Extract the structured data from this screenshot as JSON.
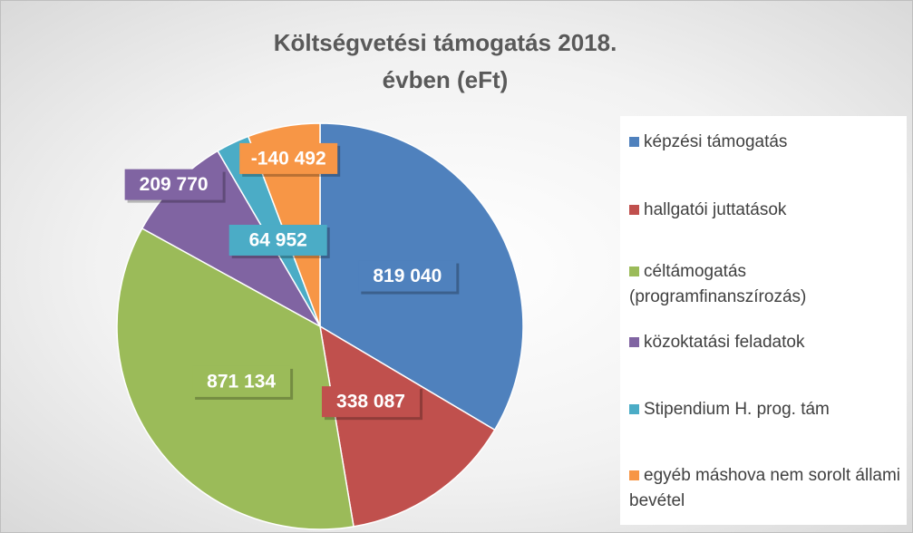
{
  "chart_data": {
    "type": "pie",
    "title": "Költségvetési támogatás 2018. évben (eFt)",
    "categories": [
      "képzési támogatás",
      "hallgatói juttatások",
      "céltámogatás (programfinanszírozás)",
      "közoktatási feladatok",
      "Stipendium H. prog. tám",
      "egyéb máshova nem sorolt állami bevétel"
    ],
    "values": [
      819040,
      338087,
      871134,
      209770,
      64952,
      -140492
    ],
    "value_labels": [
      "819 040",
      "338 087",
      "871 134",
      "209 770",
      "64 952",
      "-140 492"
    ],
    "colors": [
      "#4f81bd",
      "#c0504d",
      "#9bbb59",
      "#8064a2",
      "#4bacc6",
      "#f79646"
    ],
    "legend": "right"
  }
}
